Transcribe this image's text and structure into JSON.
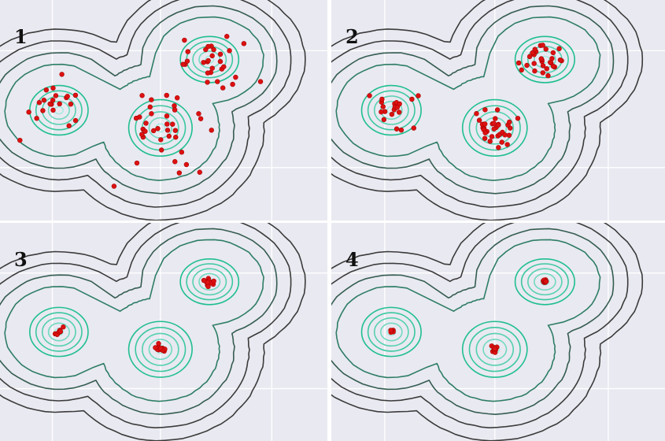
{
  "colors": {
    "background": "#e9e9f1",
    "grid": "#ffffff",
    "contour_outer": "#3b3b3b",
    "contour_inner": "#1fbf8f",
    "contour_center": "#a8ebe0",
    "particle": "#dd1111",
    "particle_edge": "#aa0000"
  },
  "panels": [
    {
      "label": "1",
      "spread": 1.0
    },
    {
      "label": "2",
      "spread": 0.55
    },
    {
      "label": "3",
      "spread": 0.12
    },
    {
      "label": "4",
      "spread": 0.05
    }
  ]
}
